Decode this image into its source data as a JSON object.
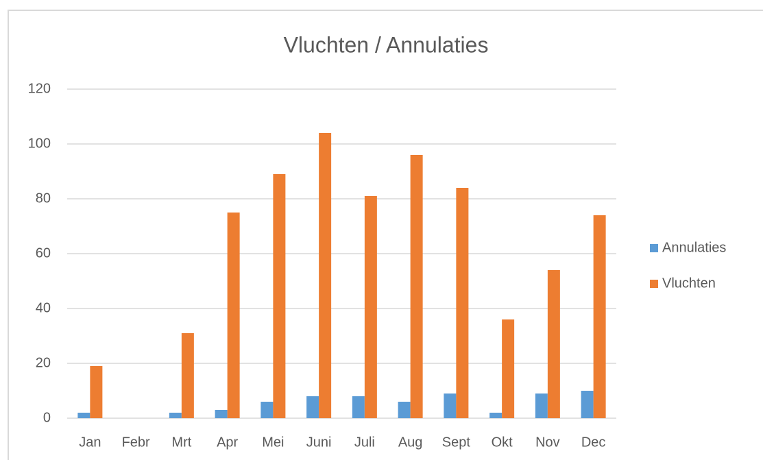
{
  "chart_data": {
    "type": "bar",
    "title": "Vluchten / Annulaties",
    "categories": [
      "Jan",
      "Febr",
      "Mrt",
      "Apr",
      "Mei",
      "Juni",
      "Juli",
      "Aug",
      "Sept",
      "Okt",
      "Nov",
      "Dec"
    ],
    "series": [
      {
        "name": "Annulaties",
        "color": "#5b9bd5",
        "values": [
          2,
          0,
          2,
          3,
          6,
          8,
          8,
          6,
          9,
          2,
          9,
          10
        ]
      },
      {
        "name": "Vluchten",
        "color": "#ed7d31",
        "values": [
          19,
          0,
          31,
          75,
          89,
          104,
          81,
          96,
          84,
          36,
          54,
          74
        ]
      }
    ],
    "ylim": [
      0,
      120
    ],
    "yticks": [
      0,
      20,
      40,
      60,
      80,
      100,
      120
    ],
    "grid": true,
    "legend": "right"
  }
}
